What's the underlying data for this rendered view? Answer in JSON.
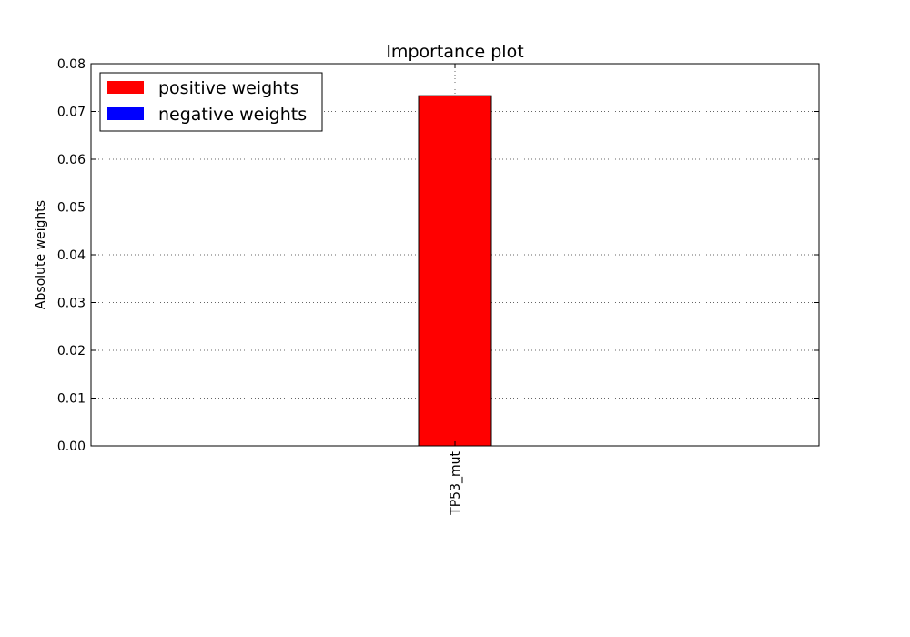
{
  "chart_data": {
    "type": "bar",
    "title": "Importance plot",
    "xlabel": "",
    "ylabel": "Absolute weights",
    "categories": [
      "TP53_mut"
    ],
    "series": [
      {
        "name": "positive weights",
        "color": "#ff0000",
        "values": [
          0.0733
        ]
      },
      {
        "name": "negative weights",
        "color": "#0000ff",
        "values": [
          0
        ]
      }
    ],
    "ylim": [
      0,
      0.08
    ],
    "yticks": [
      "0.00",
      "0.01",
      "0.02",
      "0.03",
      "0.04",
      "0.05",
      "0.06",
      "0.07",
      "0.08"
    ],
    "grid": true,
    "legend_position": "top-left"
  }
}
